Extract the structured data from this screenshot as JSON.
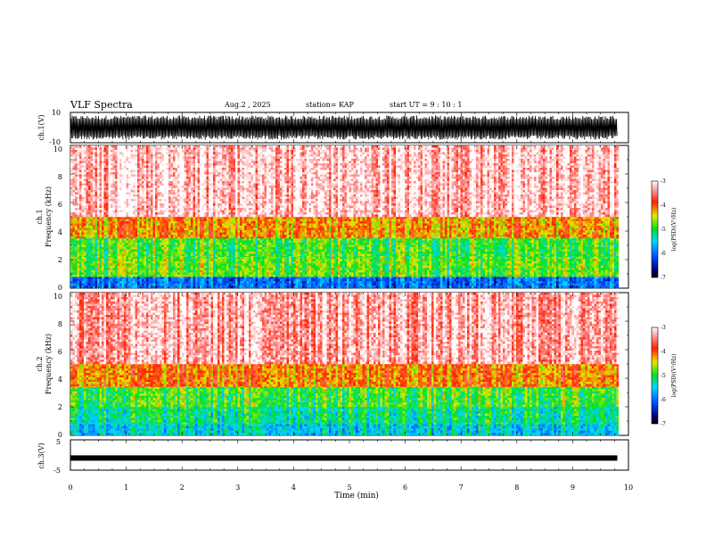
{
  "header": {
    "title": "VLF Spectra",
    "date": "Aug.2 , 2025",
    "station": "station= KAP",
    "start": "start UT = 9 : 10 : 1"
  },
  "chart_data": [
    {
      "type": "line",
      "name": "ch1-waveform",
      "ylabel": "ch.1(V)",
      "ylim": [
        -10,
        10
      ],
      "yticks": [
        "10",
        "-10"
      ],
      "xlim": [
        0,
        10
      ],
      "data_end_min": 9.8,
      "description_values": "dense oscillating waveform, amplitude roughly -8 to +8 V"
    },
    {
      "type": "heatmap",
      "name": "ch1-spectrogram",
      "ylabel": "Frequency (kHz)",
      "channel_label": "ch.1",
      "ylim": [
        0,
        10
      ],
      "yticks": [
        "0",
        "2",
        "4",
        "6",
        "8",
        "10"
      ],
      "xlim": [
        0,
        10
      ],
      "data_end_min": 9.8,
      "colorbar": {
        "label": "log(PSD)(V²/Hz)",
        "range": [
          -7,
          -3
        ],
        "ticks": [
          "-3",
          "-4",
          "-5",
          "-6",
          "-7"
        ]
      },
      "bands_khz": [
        {
          "from": 0.0,
          "to": 0.8,
          "level": -6.0
        },
        {
          "from": 0.8,
          "to": 2.2,
          "level": -4.8
        },
        {
          "from": 2.2,
          "to": 3.5,
          "level": -4.9
        },
        {
          "from": 3.5,
          "to": 5.0,
          "level": -4.2
        },
        {
          "from": 5.0,
          "to": 10.0,
          "level": -3.2
        }
      ]
    },
    {
      "type": "heatmap",
      "name": "ch2-spectrogram",
      "ylabel": "Frequency (kHz)",
      "channel_label": "ch.2",
      "ylim": [
        0,
        10
      ],
      "yticks": [
        "0",
        "2",
        "4",
        "6",
        "8",
        "10"
      ],
      "xlim": [
        0,
        10
      ],
      "data_end_min": 9.8,
      "colorbar": {
        "label": "log(PSD)(V²/Hz)",
        "range": [
          -7,
          -3
        ],
        "ticks": [
          "-3",
          "-4",
          "-5",
          "-6",
          "-7"
        ]
      },
      "bands_khz": [
        {
          "from": 0.0,
          "to": 0.8,
          "level": -5.5
        },
        {
          "from": 0.8,
          "to": 2.0,
          "level": -5.2
        },
        {
          "from": 2.0,
          "to": 3.4,
          "level": -4.9
        },
        {
          "from": 3.4,
          "to": 5.0,
          "level": -4.1
        },
        {
          "from": 5.0,
          "to": 10.0,
          "level": -3.3
        }
      ]
    },
    {
      "type": "line",
      "name": "ch3-waveform",
      "ylabel": "ch.3(V)",
      "ylim": [
        -5,
        5
      ],
      "yticks": [
        "5",
        "-5"
      ],
      "xlim": [
        0,
        10
      ],
      "data_end_min": 9.8,
      "level_v": -1.0
    }
  ],
  "xaxis": {
    "label": "Time (min)",
    "ticks": [
      "0",
      "1",
      "2",
      "3",
      "4",
      "5",
      "6",
      "7",
      "8",
      "9",
      "10"
    ]
  }
}
